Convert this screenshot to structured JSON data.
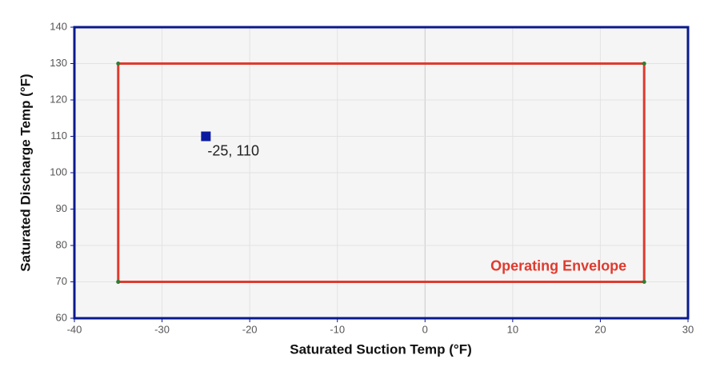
{
  "chart_data": {
    "type": "scatter",
    "xlabel": "Saturated Suction Temp (°F)",
    "ylabel": "Saturated Discharge Temp (°F)",
    "xlim": [
      -40,
      30
    ],
    "xticks": [
      -40,
      -30,
      -20,
      -10,
      0,
      10,
      20,
      30
    ],
    "ylim": [
      60,
      140
    ],
    "yticks": [
      60,
      70,
      80,
      90,
      100,
      110,
      120,
      130,
      140
    ],
    "grid": true,
    "series": [
      {
        "name": "Operating Envelope",
        "color": "#e03a2e",
        "marker_color": "#2e7d32",
        "line": true,
        "x": [
          -35,
          25,
          25,
          -35,
          -35
        ],
        "values": [
          70,
          70,
          130,
          130,
          70
        ]
      },
      {
        "color": "#0a1aa0",
        "line": false,
        "x": [
          -25
        ],
        "values": [
          110
        ],
        "value_labels": [
          "-25, 110"
        ]
      }
    ]
  }
}
